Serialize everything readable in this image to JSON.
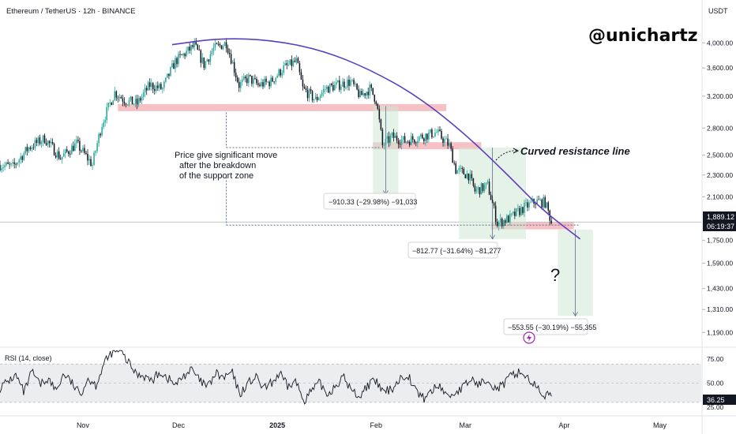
{
  "header": {
    "symbol": "Ethereum / TetherUS · 12h · BINANCE",
    "currency": "USDT"
  },
  "watermark": "@unichartz",
  "price_labels": {
    "last_price": "1,889.12",
    "countdown": "06:19:37",
    "rsi_value": "36.25"
  },
  "annotations": {
    "breakdown_note": [
      "Price give significant move",
      "after the breakdown",
      "of the support zone"
    ],
    "curve_note": "Curved resistance line",
    "question_mark": "?",
    "measure_1": "−910.33 (−29.98%) −91,033",
    "measure_2": "−812.77 (−31.64%) −81,277",
    "measure_3": "−553.55 (−30.19%) −55,355"
  },
  "rsi": {
    "title": "RSI (14, close)"
  },
  "colors": {
    "up": "#26a69a",
    "down": "#131722",
    "support": "#f4b6bb",
    "box": "#cfe8d3",
    "curve": "#5a3fc0",
    "rsi_band": "#dfe1e5",
    "rsi_line": "#131722",
    "event": "#9c27b0"
  },
  "chart_data": [
    {
      "type": "candlestick",
      "title": "Ethereum / TetherUS · 12h · BINANCE",
      "y_axis": {
        "scale": "log",
        "ticks": [
          4000,
          3600,
          3200,
          2800,
          2500,
          2300,
          2100,
          1750,
          1590,
          1430,
          1310,
          1190
        ],
        "tick_labels": [
          "4,000.00",
          "3,600.00",
          "3,200.00",
          "2,800.00",
          "2,500.00",
          "2,300.00",
          "2,100.00",
          "1,750.00",
          "1,590.00",
          "1,430.00",
          "1,310.00",
          "1,190.00"
        ],
        "range": [
          1130,
          4450
        ]
      },
      "x_axis": {
        "type": "date",
        "range": [
          "2024-10-06",
          "2025-05-14"
        ],
        "ticks": [
          "2024-11-01",
          "2024-12-01",
          "2025-01-01",
          "2025-02-01",
          "2025-03-01",
          "2025-04-01",
          "2025-05-01"
        ],
        "tick_labels": [
          "Nov",
          "Dec",
          "2025",
          "Feb",
          "Mar",
          "Apr",
          "May"
        ]
      },
      "close_path": [
        [
          "2024-10-06",
          2400
        ],
        [
          "2024-10-10",
          2380
        ],
        [
          "2024-10-15",
          2580
        ],
        [
          "2024-10-20",
          2680
        ],
        [
          "2024-10-25",
          2470
        ],
        [
          "2024-10-30",
          2620
        ],
        [
          "2024-11-04",
          2400
        ],
        [
          "2024-11-07",
          2850
        ],
        [
          "2024-11-11",
          3250
        ],
        [
          "2024-11-14",
          3150
        ],
        [
          "2024-11-18",
          3100
        ],
        [
          "2024-11-22",
          3350
        ],
        [
          "2024-11-26",
          3300
        ],
        [
          "2024-11-30",
          3700
        ],
        [
          "2024-12-06",
          3950
        ],
        [
          "2024-12-09",
          3650
        ],
        [
          "2024-12-12",
          3900
        ],
        [
          "2024-12-16",
          4000
        ],
        [
          "2024-12-19",
          3500
        ],
        [
          "2024-12-20",
          3350
        ],
        [
          "2024-12-23",
          3450
        ],
        [
          "2024-12-26",
          3350
        ],
        [
          "2024-12-30",
          3400
        ],
        [
          "2025-01-03",
          3600
        ],
        [
          "2025-01-07",
          3700
        ],
        [
          "2025-01-09",
          3300
        ],
        [
          "2025-01-13",
          3150
        ],
        [
          "2025-01-16",
          3300
        ],
        [
          "2025-01-20",
          3350
        ],
        [
          "2025-01-24",
          3400
        ],
        [
          "2025-01-27",
          3200
        ],
        [
          "2025-01-30",
          3300
        ],
        [
          "2025-02-01",
          3150
        ],
        [
          "2025-02-03",
          2600
        ],
        [
          "2025-02-06",
          2700
        ],
        [
          "2025-02-10",
          2650
        ],
        [
          "2025-02-15",
          2700
        ],
        [
          "2025-02-20",
          2750
        ],
        [
          "2025-02-24",
          2600
        ],
        [
          "2025-02-26",
          2350
        ],
        [
          "2025-03-02",
          2300
        ],
        [
          "2025-03-04",
          2150
        ],
        [
          "2025-03-08",
          2200
        ],
        [
          "2025-03-11",
          1880
        ],
        [
          "2025-03-15",
          1920
        ],
        [
          "2025-03-19",
          2000
        ],
        [
          "2025-03-23",
          2060
        ],
        [
          "2025-03-26",
          2050
        ],
        [
          "2025-03-28",
          1889
        ]
      ],
      "support_zones": [
        {
          "from": "2024-11-12",
          "to": "2025-02-23",
          "level": 3050
        },
        {
          "from": "2025-01-31",
          "to": "2025-03-06",
          "level": 2600
        },
        {
          "from": "2025-03-09",
          "to": "2025-04-04",
          "level": 1860
        }
      ],
      "measured_moves": [
        {
          "label": "−910.33 (−29.98%) −91,033",
          "from": "2025-01-31",
          "to": "2025-02-08",
          "top": 3070,
          "bottom": 2120
        },
        {
          "label": "−812.77 (−31.64%) −81,277",
          "from": "2025-02-27",
          "to": "2025-03-20",
          "top": 2580,
          "bottom": 1760
        },
        {
          "label": "−553.55 (−30.19%) −55,355",
          "from": "2025-03-30",
          "to": "2025-04-10",
          "top": 1830,
          "bottom": 1275
        }
      ],
      "curved_resistance": [
        [
          "2024-11-29",
          3970
        ],
        [
          "2024-12-14",
          4080
        ],
        [
          "2024-12-30",
          4050
        ],
        [
          "2025-01-15",
          3880
        ],
        [
          "2025-01-30",
          3580
        ],
        [
          "2025-02-14",
          3200
        ],
        [
          "2025-03-01",
          2730
        ],
        [
          "2025-03-15",
          2280
        ],
        [
          "2025-03-25",
          1990
        ],
        [
          "2025-04-06",
          1760
        ]
      ],
      "last_price": 1889.12
    },
    {
      "type": "line",
      "title": "RSI (14, close)",
      "y_axis": {
        "ticks": [
          75,
          50,
          25
        ],
        "tick_labels": [
          "75.00",
          "50.00",
          "25.00"
        ],
        "range": [
          20,
          85
        ]
      },
      "band": [
        30,
        70
      ],
      "last_value": 36.25,
      "series": [
        {
          "values": [
            45,
            52,
            58,
            40,
            62,
            48,
            55,
            42,
            60,
            50,
            38,
            55,
            48,
            70,
            82,
            84,
            72,
            60,
            58,
            52,
            62,
            55,
            48,
            58,
            64,
            52,
            46,
            60,
            55,
            62,
            38,
            50,
            56,
            44,
            50,
            60,
            46,
            52,
            32,
            42,
            50,
            38,
            48,
            56,
            42,
            36,
            48,
            52,
            40,
            44,
            54,
            60,
            42,
            34,
            42,
            48,
            36,
            40,
            46,
            54,
            48,
            56,
            44,
            48,
            58,
            62,
            56,
            46,
            38,
            36
          ]
        }
      ]
    }
  ]
}
